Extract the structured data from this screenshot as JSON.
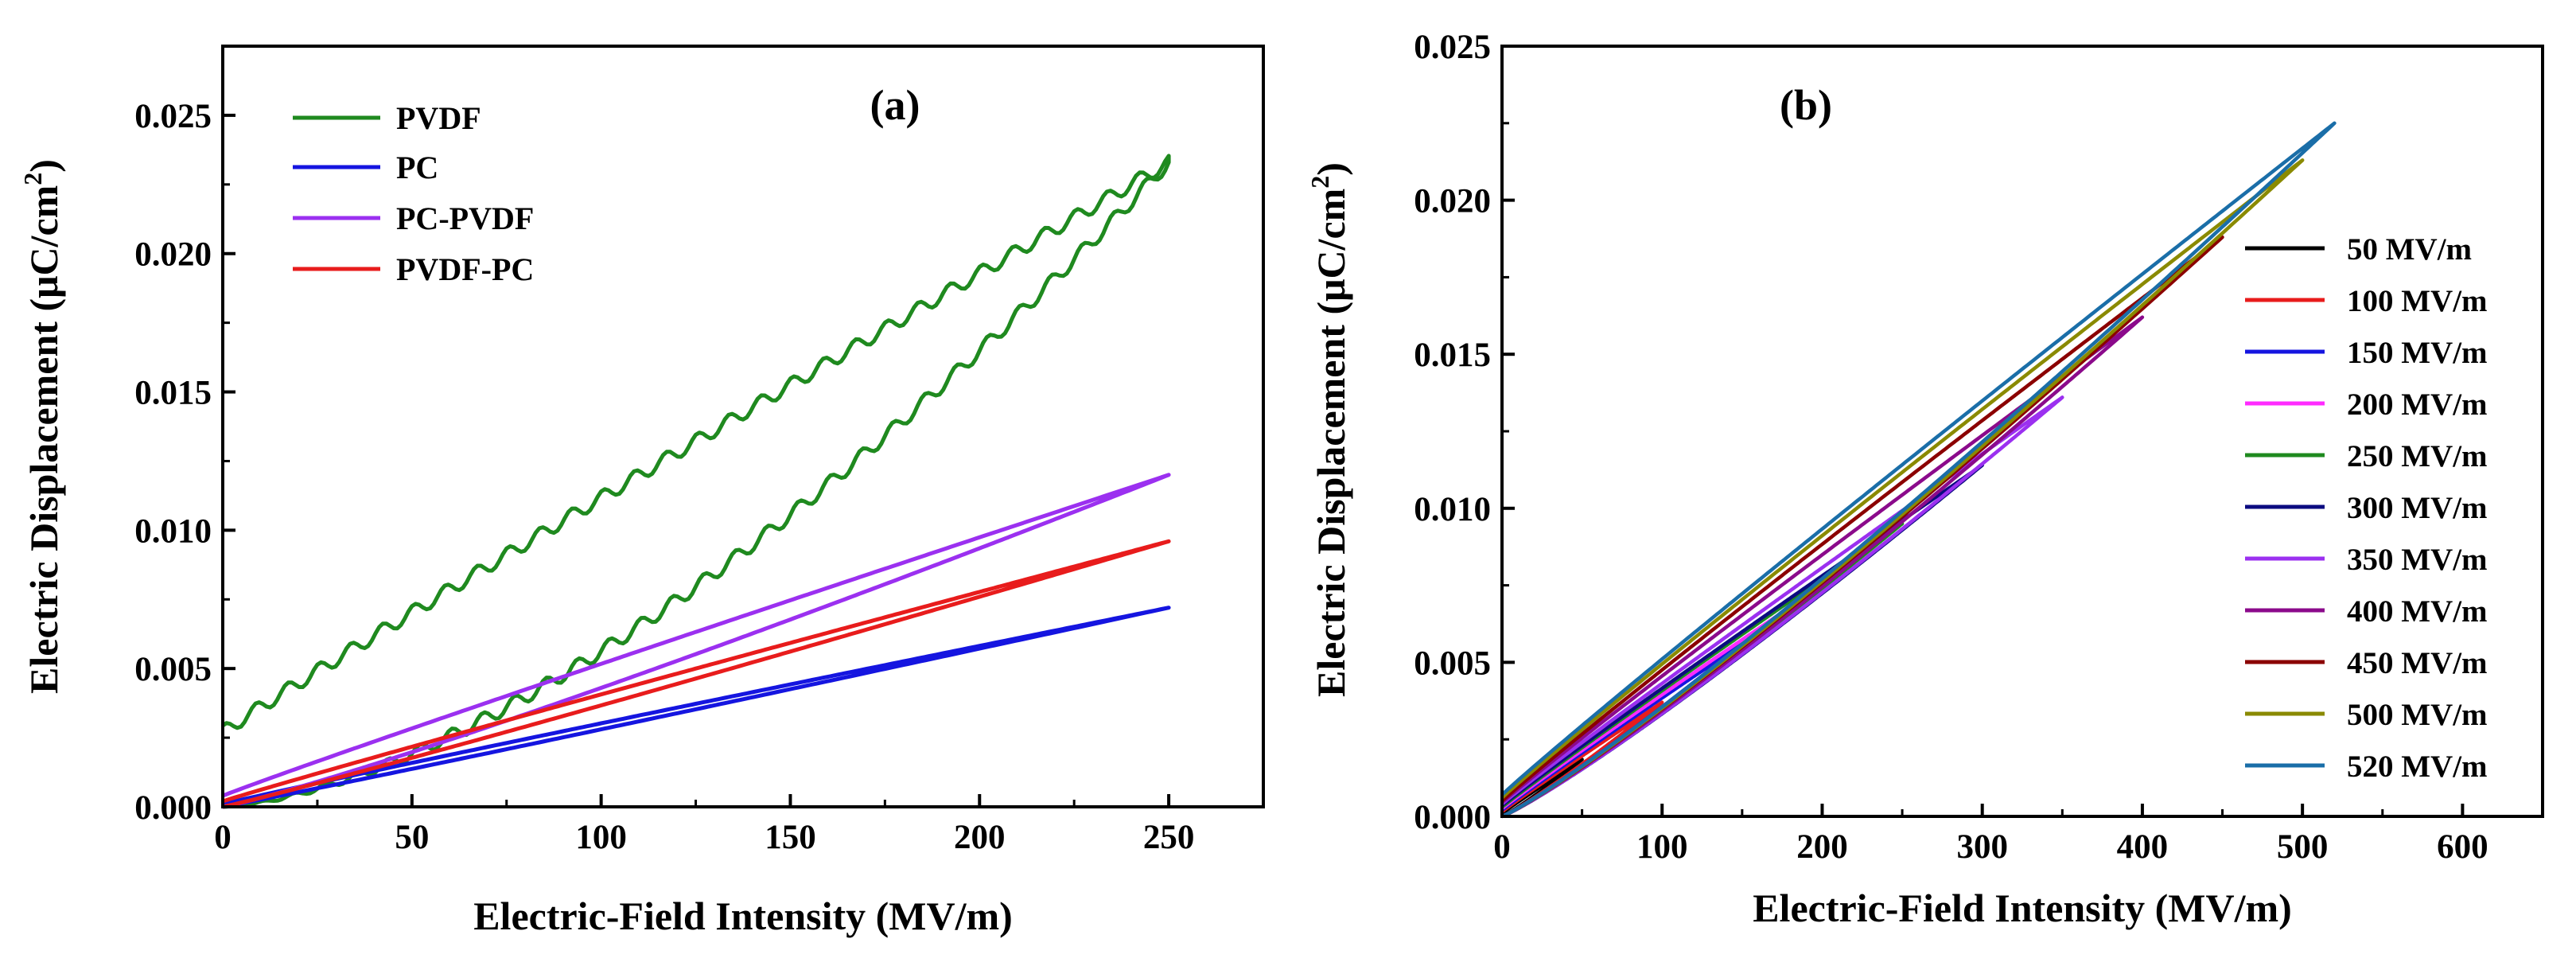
{
  "chart_data": [
    {
      "type": "line",
      "panel_label": "(a)",
      "xlabel": "Electric-Field Intensity (MV/m)",
      "ylabel_main": "Electric Displacement (μC/cm",
      "ylabel_sup": "2",
      "ylabel_close": ")",
      "xlim": [
        0,
        275
      ],
      "ylim": [
        0,
        0.0275
      ],
      "xticks": [
        0,
        50,
        100,
        150,
        200,
        250
      ],
      "xtick_labels": [
        "0",
        "50",
        "100",
        "150",
        "200",
        "250"
      ],
      "yticks": [
        0,
        0.005,
        0.01,
        0.015,
        0.02,
        0.025
      ],
      "ytick_labels": [
        "0.000",
        "0.005",
        "0.010",
        "0.015",
        "0.020",
        "0.025"
      ],
      "legend_position": "top-left",
      "series": [
        {
          "name": "PVDF",
          "color": "#1f8a1f",
          "emax": 250,
          "dmax": 0.0233,
          "d0": 0.0027,
          "ripple": 0.00025,
          "charge_curve": 1.55
        },
        {
          "name": "PC",
          "color": "#1515e0",
          "emax": 250,
          "dmax": 0.0072,
          "d0": 0.0001,
          "ripple": 0,
          "charge_curve": 1.03
        },
        {
          "name": "PC-PVDF",
          "color": "#9b30f0",
          "emax": 250,
          "dmax": 0.012,
          "d0": 0.0004,
          "ripple": 0,
          "charge_curve": 1.12
        },
        {
          "name": "PVDF-PC",
          "color": "#e81c1c",
          "emax": 250,
          "dmax": 0.0096,
          "d0": 0.0002,
          "ripple": 0,
          "charge_curve": 1.05
        }
      ]
    },
    {
      "type": "line",
      "panel_label": "(b)",
      "xlabel": "Electric-Field Intensity (MV/m)",
      "ylabel_main": "Electric Displacement (μC/cm",
      "ylabel_sup": "2",
      "ylabel_close": ")",
      "xlim": [
        0,
        650
      ],
      "ylim": [
        0,
        0.025
      ],
      "xticks": [
        0,
        100,
        200,
        300,
        400,
        500,
        600
      ],
      "xtick_labels": [
        "0",
        "100",
        "200",
        "300",
        "400",
        "500",
        "600"
      ],
      "yticks": [
        0,
        0.005,
        0.01,
        0.015,
        0.02,
        0.025
      ],
      "ytick_labels": [
        "0.000",
        "0.005",
        "0.010",
        "0.015",
        "0.020",
        "0.025"
      ],
      "legend_position": "right",
      "series": [
        {
          "name": "50 MV/m",
          "color": "#000000",
          "emax": 50,
          "dmax": 0.00185,
          "d0": 0.0001
        },
        {
          "name": "100 MV/m",
          "color": "#e81c1c",
          "emax": 100,
          "dmax": 0.0037,
          "d0": 0.00015
        },
        {
          "name": "150 MV/m",
          "color": "#1515e0",
          "emax": 150,
          "dmax": 0.0056,
          "d0": 0.0002
        },
        {
          "name": "200 MV/m",
          "color": "#ff2bff",
          "emax": 200,
          "dmax": 0.0075,
          "d0": 0.00025
        },
        {
          "name": "250 MV/m",
          "color": "#1f8a1f",
          "emax": 250,
          "dmax": 0.0095,
          "d0": 0.0003
        },
        {
          "name": "300 MV/m",
          "color": "#0b0b80",
          "emax": 300,
          "dmax": 0.0114,
          "d0": 0.00035
        },
        {
          "name": "350 MV/m",
          "color": "#9b30f0",
          "emax": 350,
          "dmax": 0.0136,
          "d0": 0.0004
        },
        {
          "name": "400 MV/m",
          "color": "#8b0a8b",
          "emax": 400,
          "dmax": 0.0162,
          "d0": 0.00045
        },
        {
          "name": "450 MV/m",
          "color": "#8b0000",
          "emax": 450,
          "dmax": 0.0188,
          "d0": 0.0005
        },
        {
          "name": "500 MV/m",
          "color": "#8a8a00",
          "emax": 500,
          "dmax": 0.0213,
          "d0": 0.0006
        },
        {
          "name": "520 MV/m",
          "color": "#1a6ea8",
          "emax": 520,
          "dmax": 0.0225,
          "d0": 0.0007
        }
      ]
    }
  ]
}
